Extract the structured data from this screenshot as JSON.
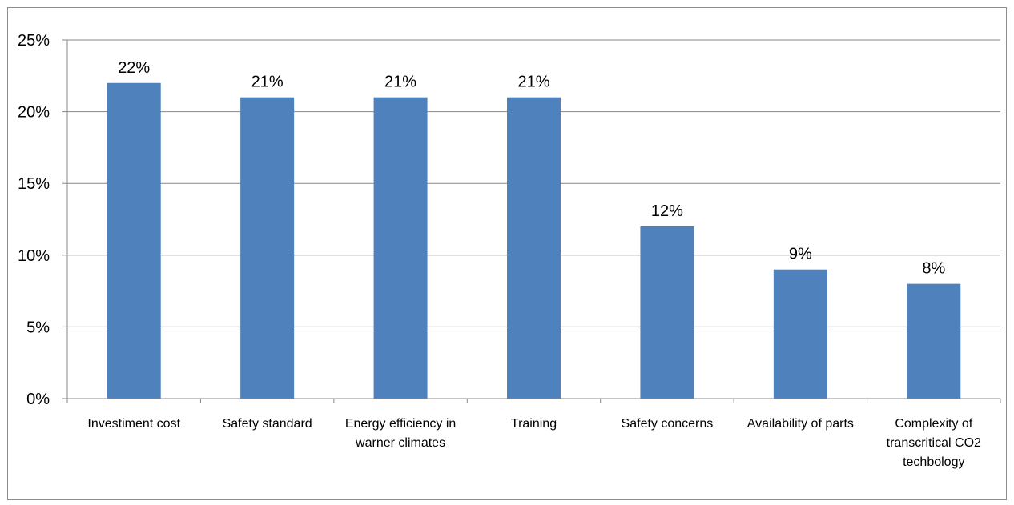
{
  "chart_data": {
    "type": "bar",
    "title": "",
    "xlabel": "",
    "ylabel": "",
    "categories": [
      "Investiment cost",
      "Safety standard",
      "Energy efficiency in warner climates",
      "Training",
      "Safety concerns",
      "Availability of parts",
      "Complexity of transcritical CO2 techbology"
    ],
    "category_lines": [
      [
        "Investiment cost"
      ],
      [
        "Safety standard"
      ],
      [
        "Energy efficiency in",
        "warner climates"
      ],
      [
        "Training"
      ],
      [
        "Safety concerns"
      ],
      [
        "Availability of parts"
      ],
      [
        "Complexity of",
        "transcritical CO2",
        "techbology"
      ]
    ],
    "values": [
      22,
      21,
      21,
      21,
      12,
      9,
      8
    ],
    "data_labels": [
      "22%",
      "21%",
      "21%",
      "21%",
      "12%",
      "9%",
      "8%"
    ],
    "ylim": [
      0,
      25
    ],
    "yticks": [
      0,
      5,
      10,
      15,
      20,
      25
    ],
    "ytick_labels": [
      "0%",
      "5%",
      "10%",
      "15%",
      "20%",
      "25%"
    ],
    "grid": true,
    "legend": "none",
    "colors": {
      "bar": "#4f81bd",
      "grid": "#878787",
      "axis": "#878787",
      "text": "#000000"
    }
  }
}
